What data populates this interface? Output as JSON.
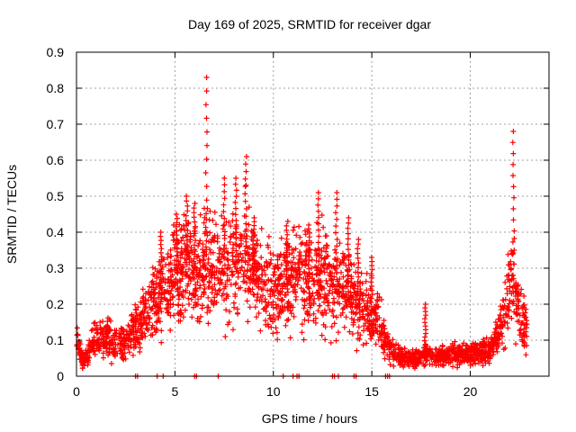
{
  "chart_data": {
    "type": "scatter",
    "title": "Day 169 of 2025, SRMTID for receiver dgar",
    "xlabel": "GPS time / hours",
    "ylabel": "SRMTID / TECUs",
    "xlim": [
      0,
      24
    ],
    "ylim": [
      0,
      0.9
    ],
    "x_ticks": [
      0,
      5,
      10,
      15,
      20
    ],
    "x_tick_labels": [
      "0",
      "5",
      "10",
      "15",
      "20"
    ],
    "y_ticks": [
      0,
      0.1,
      0.2,
      0.3,
      0.4,
      0.5,
      0.6,
      0.7,
      0.8,
      0.9
    ],
    "y_tick_labels": [
      "0",
      "0.1",
      "0.2",
      "0.3",
      "0.4",
      "0.5",
      "0.6",
      "0.7",
      "0.8",
      "0.9"
    ],
    "grid": true,
    "marker": "+",
    "series_color": "#ff0000",
    "profile": [
      [
        0.0,
        0.1
      ],
      [
        0.1,
        0.09
      ],
      [
        0.3,
        0.04
      ],
      [
        0.5,
        0.05
      ],
      [
        0.8,
        0.09
      ],
      [
        1.0,
        0.1
      ],
      [
        1.3,
        0.1
      ],
      [
        1.6,
        0.11
      ],
      [
        1.9,
        0.09
      ],
      [
        2.2,
        0.09
      ],
      [
        2.5,
        0.09
      ],
      [
        2.8,
        0.12
      ],
      [
        3.2,
        0.14
      ],
      [
        3.6,
        0.18
      ],
      [
        4.0,
        0.21
      ],
      [
        4.4,
        0.25
      ],
      [
        4.8,
        0.28
      ],
      [
        5.2,
        0.29
      ],
      [
        5.6,
        0.31
      ],
      [
        6.0,
        0.3
      ],
      [
        6.4,
        0.3
      ],
      [
        6.8,
        0.3
      ],
      [
        7.2,
        0.29
      ],
      [
        7.6,
        0.29
      ],
      [
        8.0,
        0.31
      ],
      [
        8.4,
        0.33
      ],
      [
        8.8,
        0.31
      ],
      [
        9.2,
        0.27
      ],
      [
        9.6,
        0.25
      ],
      [
        10.0,
        0.24
      ],
      [
        10.4,
        0.25
      ],
      [
        10.8,
        0.26
      ],
      [
        11.2,
        0.28
      ],
      [
        11.6,
        0.27
      ],
      [
        12.0,
        0.26
      ],
      [
        12.4,
        0.27
      ],
      [
        12.8,
        0.26
      ],
      [
        13.2,
        0.25
      ],
      [
        13.6,
        0.25
      ],
      [
        14.0,
        0.22
      ],
      [
        14.4,
        0.19
      ],
      [
        14.8,
        0.18
      ],
      [
        15.2,
        0.16
      ],
      [
        15.5,
        0.14
      ],
      [
        15.9,
        0.07
      ],
      [
        16.3,
        0.06
      ],
      [
        16.8,
        0.05
      ],
      [
        17.3,
        0.05
      ],
      [
        17.8,
        0.06
      ],
      [
        18.3,
        0.05
      ],
      [
        18.8,
        0.06
      ],
      [
        19.3,
        0.06
      ],
      [
        19.8,
        0.06
      ],
      [
        20.3,
        0.06
      ],
      [
        20.8,
        0.07
      ],
      [
        21.2,
        0.09
      ],
      [
        21.6,
        0.14
      ],
      [
        21.9,
        0.22
      ],
      [
        22.2,
        0.25
      ],
      [
        22.5,
        0.17
      ],
      [
        22.8,
        0.13
      ]
    ],
    "spikes": [
      {
        "x": 4.3,
        "peak": 0.4
      },
      {
        "x": 5.1,
        "peak": 0.45
      },
      {
        "x": 5.6,
        "peak": 0.5
      },
      {
        "x": 6.0,
        "peak": 0.48
      },
      {
        "x": 6.6,
        "peak": 0.83
      },
      {
        "x": 7.5,
        "peak": 0.55
      },
      {
        "x": 8.1,
        "peak": 0.55
      },
      {
        "x": 8.6,
        "peak": 0.61
      },
      {
        "x": 9.0,
        "peak": 0.44
      },
      {
        "x": 10.7,
        "peak": 0.43
      },
      {
        "x": 11.8,
        "peak": 0.42
      },
      {
        "x": 12.3,
        "peak": 0.51
      },
      {
        "x": 13.2,
        "peak": 0.51
      },
      {
        "x": 13.8,
        "peak": 0.44
      },
      {
        "x": 14.3,
        "peak": 0.38
      },
      {
        "x": 15.0,
        "peak": 0.33
      },
      {
        "x": 17.7,
        "peak": 0.2
      },
      {
        "x": 22.2,
        "peak": 0.68
      }
    ],
    "zero_points": [
      3.0,
      3.1,
      4.1,
      4.4,
      6.0,
      6.1,
      7.2,
      10.5,
      11.0,
      11.2,
      11.3,
      13.0,
      13.1,
      13.3,
      14.1,
      14.2,
      15.7,
      15.8,
      15.9
    ]
  }
}
